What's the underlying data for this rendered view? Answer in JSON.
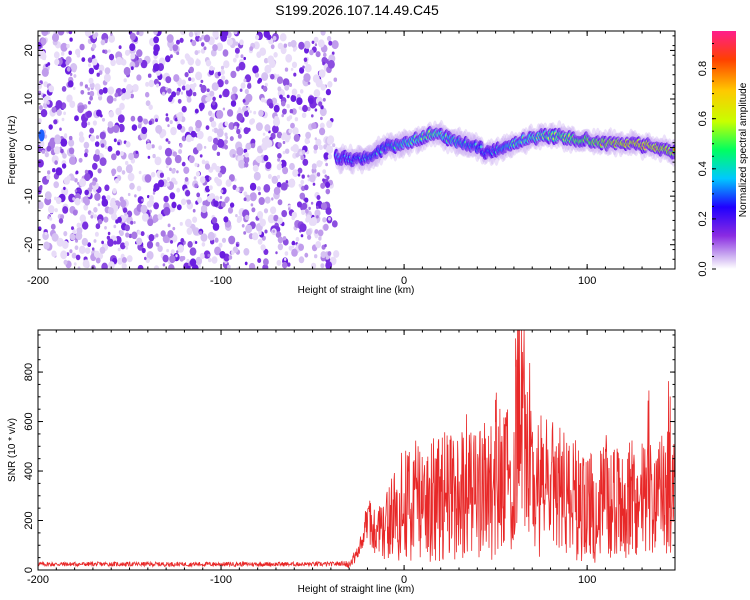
{
  "title": "S199.2026.107.14.49.C45",
  "chart_data": [
    {
      "type": "heatmap",
      "title": "S199.2026.107.14.49.C45",
      "xlabel": "Height of straight line (km)",
      "ylabel": "Frequency (Hz)",
      "xlim": [
        -200,
        148
      ],
      "ylim": [
        -25,
        24
      ],
      "xticks": [
        -200,
        -100,
        0,
        100
      ],
      "yticks": [
        -20,
        -10,
        0,
        10,
        20
      ],
      "colorbar": {
        "label": "Normalized spectral amplitude",
        "range": [
          0,
          0.95
        ],
        "ticks": [
          0,
          0.2,
          0.4,
          0.6,
          0.8
        ],
        "colormap": [
          "#ffffff",
          "#c8a8f0",
          "#8a2be2",
          "#2000ff",
          "#00c8ff",
          "#00ff60",
          "#c8ff00",
          "#ffc800",
          "#ff4000",
          "#ff1e8c"
        ]
      },
      "noise_region_km": [
        -200,
        -37
      ],
      "ridge": {
        "x_km": [
          -37,
          -30,
          -20,
          -10,
          0,
          10,
          15,
          20,
          30,
          40,
          45,
          50,
          60,
          70,
          80,
          90,
          100,
          110,
          120,
          130,
          140,
          148
        ],
        "freq_hz": [
          -2,
          -2.5,
          -2,
          0,
          1,
          2,
          3,
          2.5,
          1,
          0,
          -1,
          -0.5,
          1,
          2,
          2.5,
          2,
          1.5,
          1,
          0.8,
          0.5,
          0,
          -1
        ],
        "amplitude": [
          0.4,
          0.45,
          0.5,
          0.5,
          0.6,
          0.65,
          0.7,
          0.65,
          0.55,
          0.5,
          0.45,
          0.5,
          0.6,
          0.65,
          0.7,
          0.75,
          0.8,
          0.85,
          0.9,
          0.92,
          0.9,
          0.85
        ]
      }
    },
    {
      "type": "line",
      "xlabel": "Height of straight line (km)",
      "ylabel": "SNR (10 * v/v)",
      "xlim": [
        -200,
        148
      ],
      "ylim": [
        0,
        970
      ],
      "xticks": [
        -200,
        -100,
        0,
        100
      ],
      "yticks": [
        0,
        200,
        400,
        600,
        800
      ],
      "color": "#e82828",
      "series": [
        {
          "name": "SNR",
          "x_km": [
            -200,
            -100,
            -40,
            -30,
            -25,
            -20,
            -15,
            -10,
            -5,
            0,
            10,
            20,
            30,
            40,
            50,
            60,
            62,
            70,
            80,
            90,
            100,
            110,
            120,
            130,
            140,
            148
          ],
          "values": [
            20,
            20,
            20,
            25,
            70,
            200,
            160,
            170,
            230,
            260,
            290,
            300,
            320,
            330,
            330,
            360,
            950,
            340,
            330,
            300,
            250,
            280,
            260,
            280,
            290,
            300
          ]
        }
      ]
    }
  ]
}
